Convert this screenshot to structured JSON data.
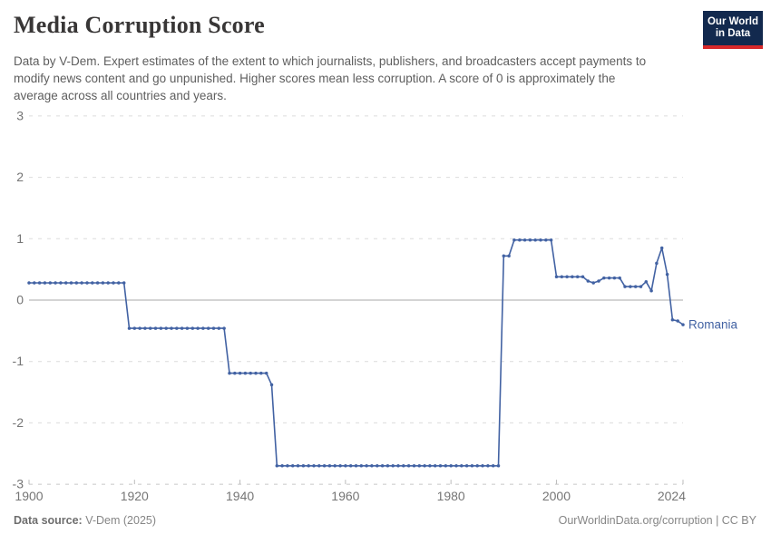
{
  "page": {
    "title": "Media Corruption Score",
    "subtitle": "Data by V-Dem. Expert estimates of the extent to which journalists, publishers, and broadcasters accept payments to modify news content and go unpunished. Higher scores mean less corruption. A score of 0 is approximately the average across all countries and years."
  },
  "logo": {
    "line1": "Our World",
    "line2": "in Data",
    "bg_color": "#12294e",
    "accent_color": "#d7282a"
  },
  "footer": {
    "source_label": "Data source:",
    "source_value": " V-Dem (2025)",
    "credit": "OurWorldinData.org/corruption | CC BY"
  },
  "chart_data": {
    "type": "line",
    "title": "Media Corruption Score",
    "entity": "Romania",
    "xlabel": "",
    "ylabel": "",
    "xlim": [
      1900,
      2024
    ],
    "ylim": [
      -3,
      3
    ],
    "yticks": [
      3,
      2,
      1,
      0,
      -1,
      -2,
      -3
    ],
    "xticks": [
      1900,
      1920,
      1940,
      1960,
      1980,
      2000,
      2024
    ],
    "grid": "horizontal-dashed",
    "legend_position": "end-of-line-label",
    "line_color": "#4262a3",
    "tick_color": "#757575",
    "series": [
      {
        "name": "Romania",
        "points": [
          [
            1900,
            0.28
          ],
          [
            1901,
            0.28
          ],
          [
            1902,
            0.28
          ],
          [
            1903,
            0.28
          ],
          [
            1904,
            0.28
          ],
          [
            1905,
            0.28
          ],
          [
            1906,
            0.28
          ],
          [
            1907,
            0.28
          ],
          [
            1908,
            0.28
          ],
          [
            1909,
            0.28
          ],
          [
            1910,
            0.28
          ],
          [
            1911,
            0.28
          ],
          [
            1912,
            0.28
          ],
          [
            1913,
            0.28
          ],
          [
            1914,
            0.28
          ],
          [
            1915,
            0.28
          ],
          [
            1916,
            0.28
          ],
          [
            1917,
            0.28
          ],
          [
            1918,
            0.28
          ],
          [
            1919,
            -0.46
          ],
          [
            1920,
            -0.46
          ],
          [
            1921,
            -0.46
          ],
          [
            1922,
            -0.46
          ],
          [
            1923,
            -0.46
          ],
          [
            1924,
            -0.46
          ],
          [
            1925,
            -0.46
          ],
          [
            1926,
            -0.46
          ],
          [
            1927,
            -0.46
          ],
          [
            1928,
            -0.46
          ],
          [
            1929,
            -0.46
          ],
          [
            1930,
            -0.46
          ],
          [
            1931,
            -0.46
          ],
          [
            1932,
            -0.46
          ],
          [
            1933,
            -0.46
          ],
          [
            1934,
            -0.46
          ],
          [
            1935,
            -0.46
          ],
          [
            1936,
            -0.46
          ],
          [
            1937,
            -0.46
          ],
          [
            1938,
            -1.19
          ],
          [
            1939,
            -1.19
          ],
          [
            1940,
            -1.19
          ],
          [
            1941,
            -1.19
          ],
          [
            1942,
            -1.19
          ],
          [
            1943,
            -1.19
          ],
          [
            1944,
            -1.19
          ],
          [
            1945,
            -1.19
          ],
          [
            1946,
            -1.38
          ],
          [
            1947,
            -2.7
          ],
          [
            1948,
            -2.7
          ],
          [
            1949,
            -2.7
          ],
          [
            1950,
            -2.7
          ],
          [
            1951,
            -2.7
          ],
          [
            1952,
            -2.7
          ],
          [
            1953,
            -2.7
          ],
          [
            1954,
            -2.7
          ],
          [
            1955,
            -2.7
          ],
          [
            1956,
            -2.7
          ],
          [
            1957,
            -2.7
          ],
          [
            1958,
            -2.7
          ],
          [
            1959,
            -2.7
          ],
          [
            1960,
            -2.7
          ],
          [
            1961,
            -2.7
          ],
          [
            1962,
            -2.7
          ],
          [
            1963,
            -2.7
          ],
          [
            1964,
            -2.7
          ],
          [
            1965,
            -2.7
          ],
          [
            1966,
            -2.7
          ],
          [
            1967,
            -2.7
          ],
          [
            1968,
            -2.7
          ],
          [
            1969,
            -2.7
          ],
          [
            1970,
            -2.7
          ],
          [
            1971,
            -2.7
          ],
          [
            1972,
            -2.7
          ],
          [
            1973,
            -2.7
          ],
          [
            1974,
            -2.7
          ],
          [
            1975,
            -2.7
          ],
          [
            1976,
            -2.7
          ],
          [
            1977,
            -2.7
          ],
          [
            1978,
            -2.7
          ],
          [
            1979,
            -2.7
          ],
          [
            1980,
            -2.7
          ],
          [
            1981,
            -2.7
          ],
          [
            1982,
            -2.7
          ],
          [
            1983,
            -2.7
          ],
          [
            1984,
            -2.7
          ],
          [
            1985,
            -2.7
          ],
          [
            1986,
            -2.7
          ],
          [
            1987,
            -2.7
          ],
          [
            1988,
            -2.7
          ],
          [
            1989,
            -2.7
          ],
          [
            1990,
            0.72
          ],
          [
            1991,
            0.72
          ],
          [
            1992,
            0.98
          ],
          [
            1993,
            0.98
          ],
          [
            1994,
            0.98
          ],
          [
            1995,
            0.98
          ],
          [
            1996,
            0.98
          ],
          [
            1997,
            0.98
          ],
          [
            1998,
            0.98
          ],
          [
            1999,
            0.98
          ],
          [
            2000,
            0.38
          ],
          [
            2001,
            0.38
          ],
          [
            2002,
            0.38
          ],
          [
            2003,
            0.38
          ],
          [
            2004,
            0.38
          ],
          [
            2005,
            0.38
          ],
          [
            2006,
            0.31
          ],
          [
            2007,
            0.28
          ],
          [
            2008,
            0.31
          ],
          [
            2009,
            0.36
          ],
          [
            2010,
            0.36
          ],
          [
            2011,
            0.36
          ],
          [
            2012,
            0.36
          ],
          [
            2013,
            0.22
          ],
          [
            2014,
            0.22
          ],
          [
            2015,
            0.22
          ],
          [
            2016,
            0.22
          ],
          [
            2017,
            0.3
          ],
          [
            2018,
            0.15
          ],
          [
            2019,
            0.6
          ],
          [
            2020,
            0.85
          ],
          [
            2021,
            0.42
          ],
          [
            2022,
            -0.32
          ],
          [
            2023,
            -0.34
          ],
          [
            2024,
            -0.4
          ]
        ]
      }
    ]
  }
}
